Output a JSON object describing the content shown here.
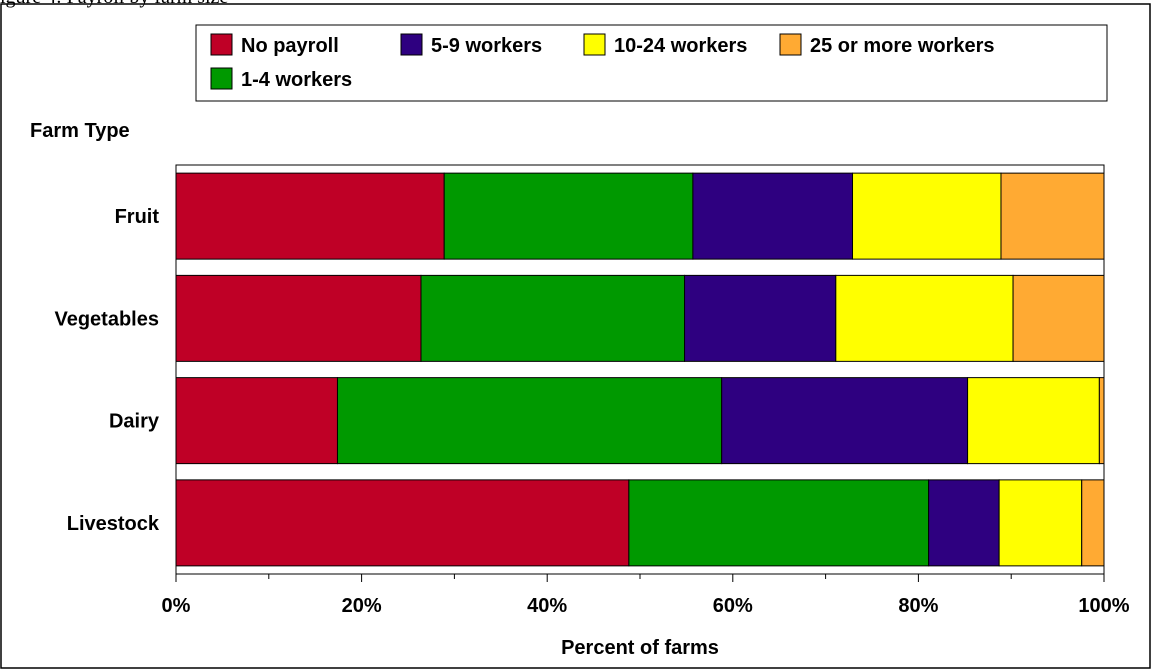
{
  "header": {
    "partial_caption": "igure 4: Payroll by farm size"
  },
  "chart_data": {
    "type": "bar",
    "orientation": "horizontal",
    "stacked": true,
    "normalized_percent": true,
    "categories": [
      "Fruit",
      "Vegetables",
      "Dairy",
      "Livestock"
    ],
    "series": [
      {
        "name": "No payroll",
        "color": "#BF0026",
        "values": [
          28.9,
          26.4,
          17.4,
          48.8
        ]
      },
      {
        "name": "1-4 workers",
        "color": "#009900",
        "values": [
          26.8,
          28.4,
          41.4,
          32.3
        ]
      },
      {
        "name": "5-9 workers",
        "color": "#2E0080",
        "values": [
          17.2,
          16.3,
          26.5,
          7.6
        ]
      },
      {
        "name": "10-24 workers",
        "color": "#FFFF00",
        "values": [
          16.0,
          19.1,
          14.2,
          8.9
        ]
      },
      {
        "name": "25 or more workers",
        "color": "#FFAA33",
        "values": [
          11.1,
          9.8,
          0.5,
          2.4
        ]
      }
    ],
    "legend_order": [
      0,
      2,
      3,
      4,
      1
    ],
    "legend_position": "top",
    "ylabel": "Farm Type",
    "xlabel": "Percent of farms",
    "xlim": [
      0,
      100
    ],
    "x_ticks": [
      "0%",
      "20%",
      "40%",
      "60%",
      "80%",
      "100%"
    ],
    "grid": false
  }
}
